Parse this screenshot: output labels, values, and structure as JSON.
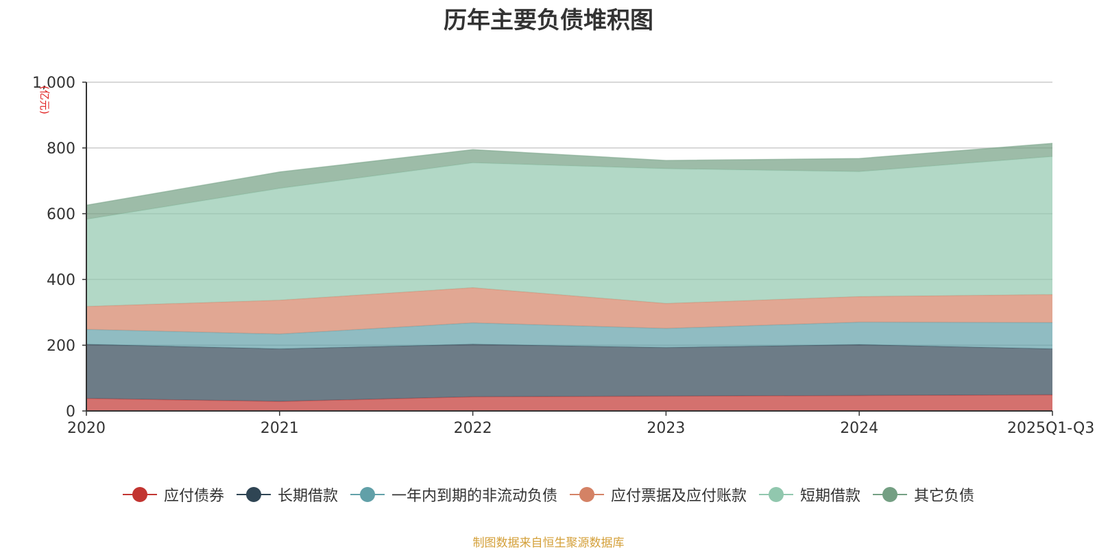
{
  "chart_data": {
    "type": "area",
    "stacked": true,
    "title": "历年主要负债堆积图",
    "ylabel": "(亿元)",
    "xlabel": "",
    "categories": [
      "2020",
      "2021",
      "2022",
      "2023",
      "2024",
      "2025Q1-Q3"
    ],
    "ylim": [
      0,
      1000
    ],
    "yticks": [
      0,
      200,
      400,
      600,
      800,
      1000
    ],
    "ytick_labels": [
      "0",
      "200",
      "400",
      "600",
      "800",
      "1,000"
    ],
    "grid": true,
    "legend_position": "bottom",
    "series": [
      {
        "name": "应付债券",
        "color": "#c23531",
        "values": [
          38,
          29,
          43,
          45,
          47,
          49
        ]
      },
      {
        "name": "长期借款",
        "color": "#2f4554",
        "values": [
          165,
          160,
          160,
          148,
          155,
          140
        ]
      },
      {
        "name": "一年内到期的非流动负债",
        "color": "#61a0a8",
        "values": [
          45,
          45,
          65,
          58,
          68,
          80
        ]
      },
      {
        "name": "应付票据及应付账款",
        "color": "#d48265",
        "values": [
          70,
          103,
          107,
          76,
          78,
          85
        ]
      },
      {
        "name": "短期借款",
        "color": "#91c7ae",
        "values": [
          265,
          340,
          380,
          410,
          380,
          420
        ]
      },
      {
        "name": "其它负债",
        "color": "#749f83",
        "values": [
          43,
          50,
          40,
          25,
          40,
          40
        ]
      }
    ]
  },
  "source_note": "制图数据来自恒生聚源数据库"
}
